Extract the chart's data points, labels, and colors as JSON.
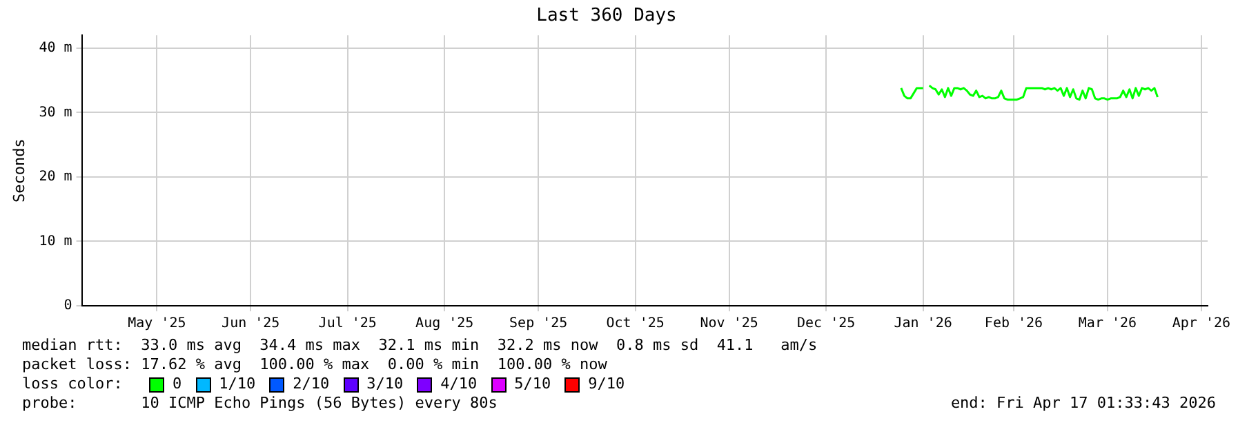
{
  "chart_data": {
    "type": "line",
    "title": "Last 360 Days",
    "ylabel": "Seconds",
    "x": [
      "2026-01-09",
      "2026-01-10",
      "2026-01-11",
      "2026-01-12",
      "2026-01-13",
      "2026-01-14",
      "2026-01-15",
      "2026-01-16",
      "2026-01-17",
      "2026-01-18",
      "2026-01-19",
      "2026-01-20",
      "2026-01-21",
      "2026-01-22",
      "2026-01-23",
      "2026-01-24",
      "2026-01-25",
      "2026-01-26",
      "2026-01-27",
      "2026-01-28",
      "2026-01-29",
      "2026-01-30",
      "2026-01-31",
      "2026-02-01",
      "2026-02-02",
      "2026-02-03",
      "2026-02-04",
      "2026-02-05",
      "2026-02-06",
      "2026-02-07",
      "2026-02-08",
      "2026-02-09",
      "2026-02-10",
      "2026-02-11",
      "2026-02-12",
      "2026-02-13",
      "2026-02-14",
      "2026-02-15",
      "2026-02-16",
      "2026-02-17",
      "2026-02-18",
      "2026-02-19",
      "2026-02-20",
      "2026-02-21",
      "2026-02-22",
      "2026-02-23",
      "2026-02-24",
      "2026-02-25",
      "2026-02-26",
      "2026-02-27",
      "2026-02-28",
      "2026-03-01",
      "2026-03-02",
      "2026-03-03",
      "2026-03-04",
      "2026-03-05",
      "2026-03-06",
      "2026-03-07",
      "2026-03-08",
      "2026-03-09",
      "2026-03-10",
      "2026-03-11",
      "2026-03-12",
      "2026-03-13",
      "2026-03-14",
      "2026-03-15",
      "2026-03-16",
      "2026-03-17",
      "2026-03-18",
      "2026-03-19",
      "2026-03-20",
      "2026-03-21",
      "2026-03-22",
      "2026-03-23",
      "2026-03-24",
      "2026-03-25",
      "2026-03-26",
      "2026-03-27",
      "2026-03-28",
      "2026-03-29",
      "2026-03-30",
      "2026-03-31",
      "2026-04-01"
    ],
    "series": [
      {
        "color": "#00ff00",
        "values": [
          33.8,
          32.6,
          32.2,
          32.2,
          33,
          33.8,
          33.8,
          33.8,
          null,
          34.2,
          33.8,
          33.6,
          32.8,
          33.6,
          32.4,
          33.8,
          32.6,
          33.8,
          33.8,
          33.6,
          33.8,
          33.4,
          32.8,
          32.6,
          33.4,
          32.4,
          32.6,
          32.2,
          32.4,
          32.2,
          32.2,
          32.4,
          33.4,
          32.2,
          32,
          32,
          32,
          32,
          32.2,
          32.4,
          33.8,
          33.8,
          33.8,
          33.8,
          33.8,
          33.8,
          33.6,
          33.8,
          33.6,
          33.8,
          33.4,
          33.8,
          32.6,
          33.8,
          32.4,
          33.6,
          32.2,
          32,
          33.4,
          32.2,
          33.8,
          33.6,
          32.2,
          32,
          32.2,
          32.2,
          32,
          32.2,
          32.2,
          32.2,
          32.4,
          33.4,
          32.4,
          33.6,
          32.2,
          33.8,
          32.6,
          33.8,
          33.6,
          33.8,
          33.4,
          33.8,
          32.4
        ]
      }
    ],
    "xlim": [
      "2025-04-22",
      "2026-04-17"
    ],
    "xticks": [
      {
        "value": "2025-05-16",
        "label": "May '25"
      },
      {
        "value": "2025-06-15",
        "label": "Jun '25"
      },
      {
        "value": "2025-07-16",
        "label": "Jul '25"
      },
      {
        "value": "2025-08-16",
        "label": "Aug '25"
      },
      {
        "value": "2025-09-15",
        "label": "Sep '25"
      },
      {
        "value": "2025-10-16",
        "label": "Oct '25"
      },
      {
        "value": "2025-11-15",
        "label": "Nov '25"
      },
      {
        "value": "2025-12-16",
        "label": "Dec '25"
      },
      {
        "value": "2026-01-16",
        "label": "Jan '26"
      },
      {
        "value": "2026-02-14",
        "label": "Feb '26"
      },
      {
        "value": "2026-03-16",
        "label": "Mar '26"
      },
      {
        "value": "2026-04-15",
        "label": "Apr '26"
      }
    ],
    "ylim": [
      0,
      42
    ],
    "yticks": [
      0,
      {
        "value": 10,
        "label": "10 m"
      },
      {
        "value": 20,
        "label": "20 m"
      },
      {
        "value": 30,
        "label": "30 m"
      },
      {
        "value": 40,
        "label": "40 m"
      }
    ],
    "grid": true,
    "annotations": [
      "median rtt:  33.0 ms avg  34.4 ms max  32.1 ms min  32.2 ms now  0.8 ms sd  41.1   am/s",
      "packet loss: 17.62 % avg  100.00 % max  0.00 % min  100.00 % now",
      "loss color:",
      "0",
      "1/10",
      "2/10",
      "3/10",
      "4/10",
      "5/10",
      "9/10",
      "probe:       10 ICMP Echo Pings (56 Bytes) every 80s",
      "end: Fri Apr 17 01:33:43 2026"
    ]
  }
}
